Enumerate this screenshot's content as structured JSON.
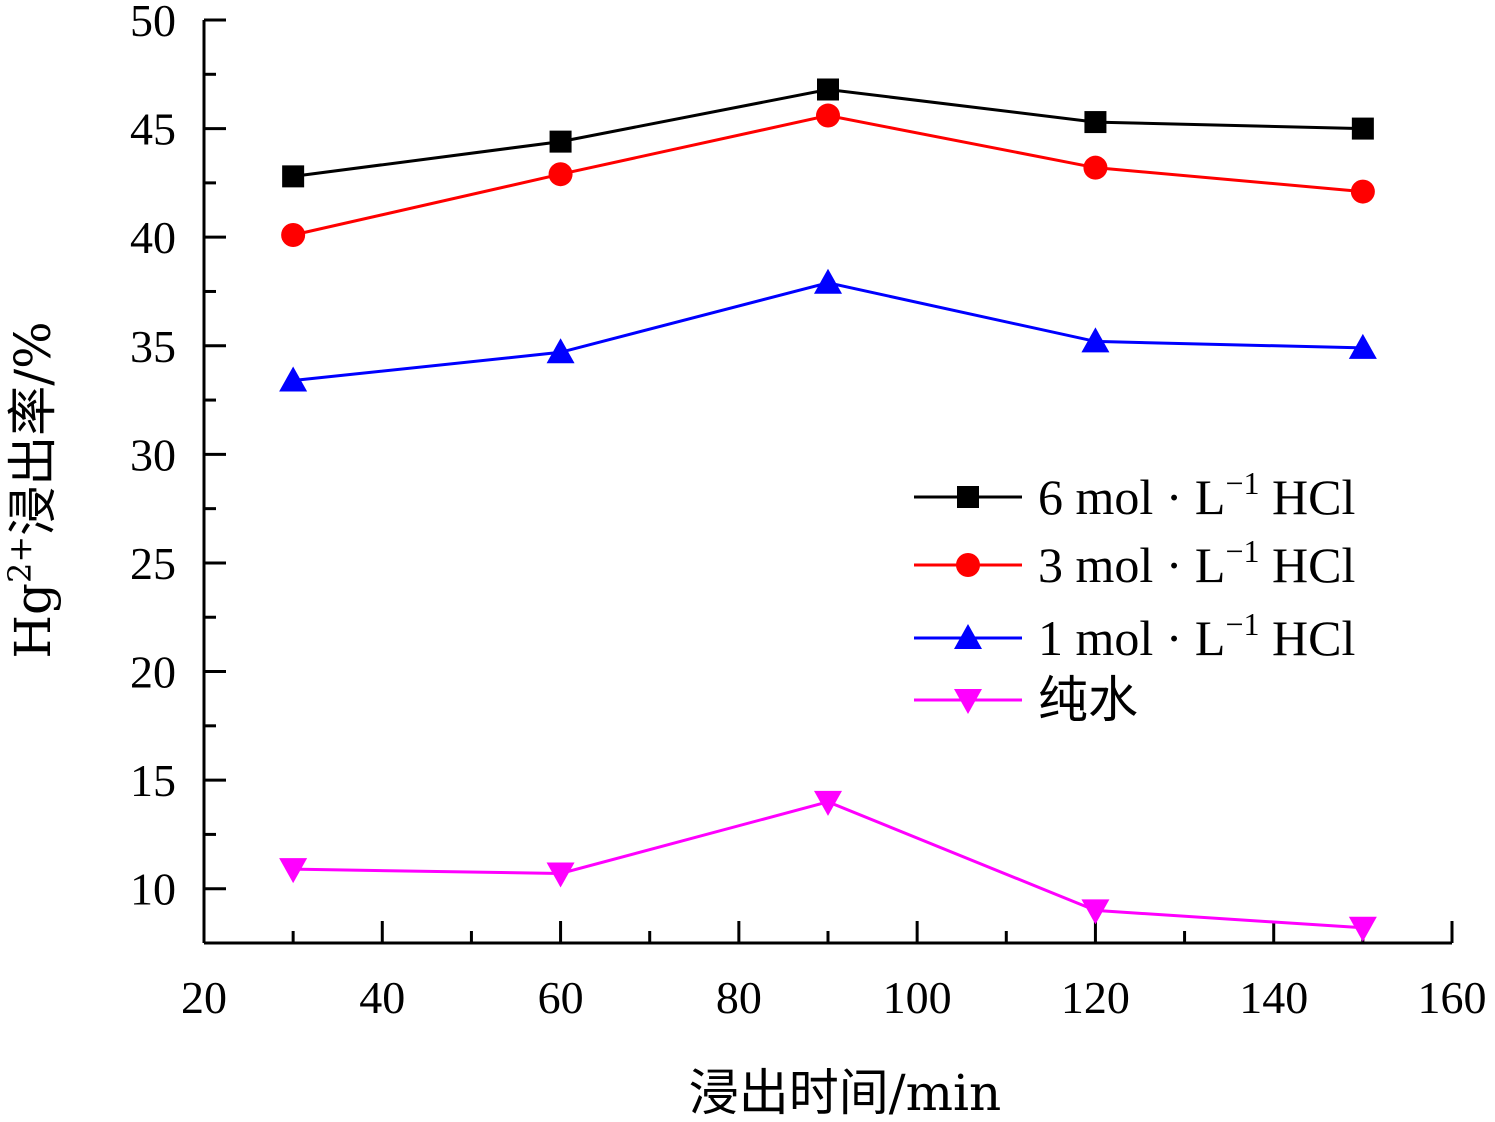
{
  "chart_data": {
    "type": "line",
    "xlabel": "浸出时间/min",
    "ylabel": "Hg2+浸出率/%",
    "ylabel_parts": {
      "base": "Hg",
      "sup": "2+",
      "rest": "浸出率/%"
    },
    "xlim": [
      20,
      160
    ],
    "ylim": [
      7.5,
      50
    ],
    "xticks": [
      20,
      40,
      60,
      80,
      100,
      120,
      140,
      160
    ],
    "yticks": [
      10,
      15,
      20,
      25,
      30,
      35,
      40,
      45,
      50
    ],
    "grid": false,
    "legend_position": "right",
    "x": [
      30,
      60,
      90,
      120,
      150
    ],
    "series": [
      {
        "name": "6 mol · L−1 HCl",
        "name_parts": {
          "pre": "6 mol · L",
          "sup": "−1",
          "post": " HCl"
        },
        "color": "#000000",
        "marker": "square",
        "values": [
          42.8,
          44.4,
          46.8,
          45.3,
          45.0
        ]
      },
      {
        "name": "3 mol · L−1 HCl",
        "name_parts": {
          "pre": "3 mol · L",
          "sup": "−1",
          "post": " HCl"
        },
        "color": "#ff0000",
        "marker": "circle",
        "values": [
          40.1,
          42.9,
          45.6,
          43.2,
          42.1
        ]
      },
      {
        "name": "1 mol · L−1 HCl",
        "name_parts": {
          "pre": "1 mol · L",
          "sup": "−1",
          "post": " HCl"
        },
        "color": "#0000ff",
        "marker": "triangle-up",
        "values": [
          33.4,
          34.7,
          37.9,
          35.2,
          34.9
        ]
      },
      {
        "name": "纯水",
        "name_parts": {
          "pre": "纯水",
          "sup": "",
          "post": ""
        },
        "color": "#ff00ff",
        "marker": "triangle-down",
        "values": [
          10.9,
          10.7,
          14.0,
          9.0,
          8.2
        ]
      }
    ]
  }
}
